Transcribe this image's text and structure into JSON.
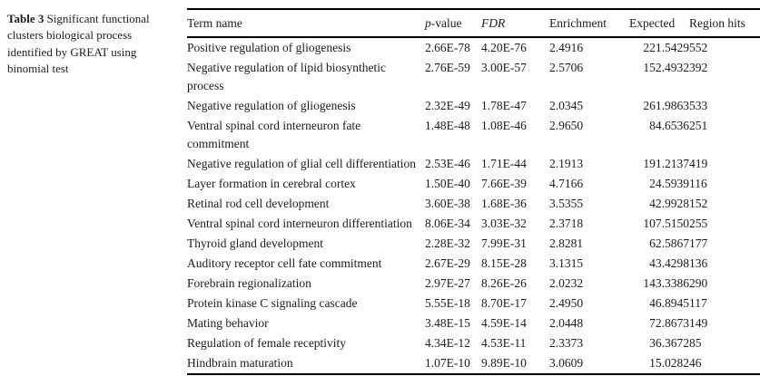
{
  "caption": {
    "label": "Table 3",
    "text": "Significant functional clusters biological process identified by GREAT using binomial test"
  },
  "table": {
    "headers": {
      "term": "Term name",
      "p_italic": "p",
      "p_rest": "-value",
      "fdr": "FDR",
      "enrichment": "Enrichment",
      "expected": "Expected",
      "region_hits": "Region hits"
    },
    "rows": [
      {
        "term": "Positive regulation of gliogenesis",
        "p_value": "2.66E-78",
        "fdr": "4.20E-76",
        "enrichment": "2.4916",
        "expected": "221.5429",
        "region_hits": "552"
      },
      {
        "term": "Negative regulation of lipid biosynthetic process",
        "p_value": "2.76E-59",
        "fdr": "3.00E-57",
        "enrichment": "2.5706",
        "expected": "152.4932",
        "region_hits": "392"
      },
      {
        "term": "Negative regulation of gliogenesis",
        "p_value": "2.32E-49",
        "fdr": "1.78E-47",
        "enrichment": "2.0345",
        "expected": "261.9863",
        "region_hits": "533"
      },
      {
        "term": "Ventral spinal cord interneuron fate commitment",
        "p_value": "1.48E-48",
        "fdr": "1.08E-46",
        "enrichment": "2.9650",
        "expected": "84.6536",
        "region_hits": "251"
      },
      {
        "term": "Negative regulation of glial cell differentiation",
        "p_value": "2.53E-46",
        "fdr": "1.71E-44",
        "enrichment": "2.1913",
        "expected": "191.2137",
        "region_hits": "419"
      },
      {
        "term": "Layer formation in cerebral cortex",
        "p_value": "1.50E-40",
        "fdr": "7.66E-39",
        "enrichment": "4.7166",
        "expected": "24.5939",
        "region_hits": "116"
      },
      {
        "term": "Retinal rod cell development",
        "p_value": "3.60E-38",
        "fdr": "1.68E-36",
        "enrichment": "3.5355",
        "expected": "42.9928",
        "region_hits": "152"
      },
      {
        "term": "Ventral spinal cord interneuron differentiation",
        "p_value": "8.06E-34",
        "fdr": "3.03E-32",
        "enrichment": "2.3718",
        "expected": "107.5150",
        "region_hits": "255"
      },
      {
        "term": "Thyroid gland development",
        "p_value": "2.28E-32",
        "fdr": "7.99E-31",
        "enrichment": "2.8281",
        "expected": "62.5867",
        "region_hits": "177"
      },
      {
        "term": "Auditory receptor cell fate commitment",
        "p_value": "2.67E-29",
        "fdr": "8.15E-28",
        "enrichment": "3.1315",
        "expected": "43.4298",
        "region_hits": "136"
      },
      {
        "term": "Forebrain regionalization",
        "p_value": "2.97E-27",
        "fdr": "8.26E-26",
        "enrichment": "2.0232",
        "expected": "143.3386",
        "region_hits": "290"
      },
      {
        "term": "Protein kinase C signaling cascade",
        "p_value": "5.55E-18",
        "fdr": "8.70E-17",
        "enrichment": "2.4950",
        "expected": "46.8945",
        "region_hits": "117"
      },
      {
        "term": "Mating behavior",
        "p_value": "3.48E-15",
        "fdr": "4.59E-14",
        "enrichment": "2.0448",
        "expected": "72.8673",
        "region_hits": "149"
      },
      {
        "term": "Regulation of female receptivity",
        "p_value": "4.34E-12",
        "fdr": "4.53E-11",
        "enrichment": "2.3373",
        "expected": "36.3672",
        "region_hits": "85"
      },
      {
        "term": "Hindbrain maturation",
        "p_value": "1.07E-10",
        "fdr": "9.89E-10",
        "enrichment": "3.0609",
        "expected": "15.0282",
        "region_hits": "46"
      }
    ]
  },
  "colors": {
    "text": "#1c1c1c",
    "rule": "#000000",
    "background": "#ffffff"
  }
}
